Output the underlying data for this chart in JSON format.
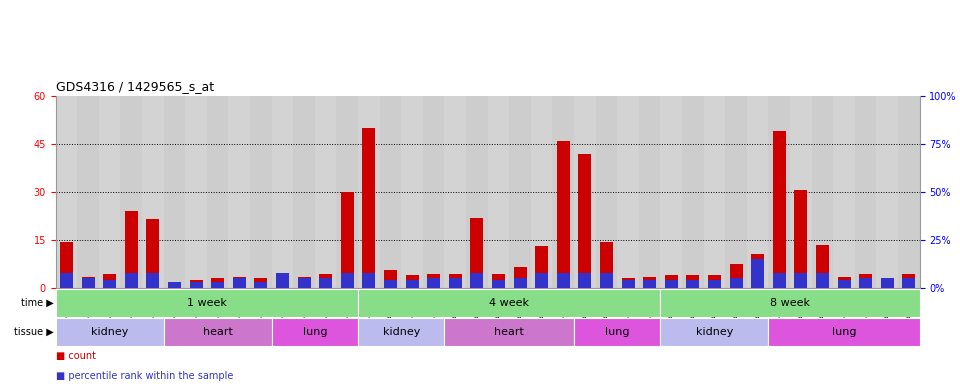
{
  "title": "GDS4316 / 1429565_s_at",
  "samples": [
    "GSM949115",
    "GSM949116",
    "GSM949117",
    "GSM949118",
    "GSM949119",
    "GSM949120",
    "GSM949121",
    "GSM949122",
    "GSM949123",
    "GSM949124",
    "GSM949125",
    "GSM949126",
    "GSM949127",
    "GSM949128",
    "GSM949129",
    "GSM949130",
    "GSM949131",
    "GSM949132",
    "GSM949133",
    "GSM949134",
    "GSM949135",
    "GSM949136",
    "GSM949137",
    "GSM949138",
    "GSM949139",
    "GSM949140",
    "GSM949141",
    "GSM949142",
    "GSM949143",
    "GSM949144",
    "GSM949145",
    "GSM949146",
    "GSM949147",
    "GSM949148",
    "GSM949149",
    "GSM949150",
    "GSM949151",
    "GSM949152",
    "GSM949153",
    "GSM949154"
  ],
  "count": [
    14.5,
    3.5,
    4.5,
    24.0,
    21.5,
    1.5,
    2.5,
    3.0,
    3.5,
    3.0,
    2.5,
    3.5,
    4.5,
    30.0,
    50.0,
    5.5,
    4.0,
    4.5,
    4.5,
    22.0,
    4.5,
    6.5,
    13.0,
    46.0,
    42.0,
    14.5,
    3.0,
    3.5,
    4.0,
    4.0,
    4.0,
    7.5,
    10.5,
    49.0,
    30.5,
    13.5,
    3.5,
    4.5,
    3.0,
    4.5
  ],
  "percentile": [
    8,
    5,
    4,
    8,
    8,
    3,
    3,
    3,
    5,
    3,
    8,
    5,
    5,
    8,
    8,
    4,
    4,
    5,
    5,
    8,
    4,
    5,
    8,
    8,
    8,
    8,
    4,
    4,
    4,
    4,
    4,
    5,
    15,
    8,
    8,
    8,
    4,
    5,
    5,
    5
  ],
  "ylim_left": [
    0,
    60
  ],
  "ylim_right": [
    0,
    100
  ],
  "yticks_left": [
    0,
    15,
    30,
    45,
    60
  ],
  "yticks_right": [
    0,
    25,
    50,
    75,
    100
  ],
  "ytick_labels_right": [
    "0%",
    "25%",
    "50%",
    "75%",
    "100%"
  ],
  "bar_color_red": "#cc0000",
  "bar_color_blue": "#3333cc",
  "bg_color": "#d8d8d8",
  "time_groups": [
    {
      "label": "1 week",
      "start": 0,
      "end": 14
    },
    {
      "label": "4 week",
      "start": 14,
      "end": 28
    },
    {
      "label": "8 week",
      "start": 28,
      "end": 40
    }
  ],
  "tissue_groups": [
    {
      "label": "kidney",
      "start": 0,
      "end": 5,
      "color": "#bbbbee"
    },
    {
      "label": "heart",
      "start": 5,
      "end": 10,
      "color": "#cc77cc"
    },
    {
      "label": "lung",
      "start": 10,
      "end": 14,
      "color": "#dd55dd"
    },
    {
      "label": "kidney",
      "start": 14,
      "end": 18,
      "color": "#bbbbee"
    },
    {
      "label": "heart",
      "start": 18,
      "end": 24,
      "color": "#cc77cc"
    },
    {
      "label": "lung",
      "start": 24,
      "end": 28,
      "color": "#dd55dd"
    },
    {
      "label": "kidney",
      "start": 28,
      "end": 33,
      "color": "#bbbbee"
    },
    {
      "label": "lung",
      "start": 33,
      "end": 40,
      "color": "#dd55dd"
    }
  ],
  "time_color": "#88dd88",
  "label_fontsize": 7,
  "tick_fontsize": 5.5,
  "bar_width": 0.6
}
